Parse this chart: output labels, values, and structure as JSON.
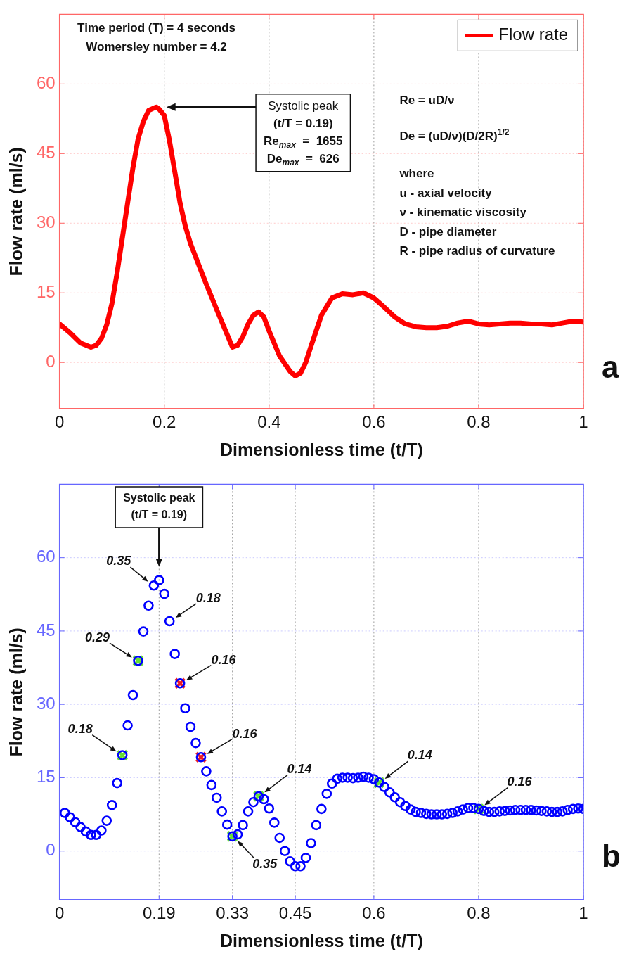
{
  "chart_data": [
    {
      "type": "line",
      "xlabel": "Dimensionless time (t/T)",
      "ylabel": "Flow rate (ml/s)",
      "series": [
        {
          "name": "Flow rate",
          "color": "#ff0000",
          "x": [
            0,
            0.02,
            0.04,
            0.06,
            0.07,
            0.08,
            0.09,
            0.1,
            0.11,
            0.12,
            0.13,
            0.14,
            0.15,
            0.16,
            0.17,
            0.18,
            0.185,
            0.19,
            0.2,
            0.21,
            0.22,
            0.23,
            0.24,
            0.25,
            0.26,
            0.28,
            0.3,
            0.32,
            0.33,
            0.34,
            0.35,
            0.36,
            0.37,
            0.38,
            0.39,
            0.4,
            0.42,
            0.44,
            0.45,
            0.46,
            0.47,
            0.48,
            0.5,
            0.52,
            0.54,
            0.56,
            0.58,
            0.6,
            0.62,
            0.64,
            0.66,
            0.68,
            0.7,
            0.72,
            0.74,
            0.76,
            0.78,
            0.8,
            0.82,
            0.84,
            0.86,
            0.88,
            0.9,
            0.92,
            0.94,
            0.96,
            0.98,
            1
          ],
          "values": [
            8.3,
            6.4,
            4.2,
            3.3,
            3.7,
            5.2,
            8.1,
            12.7,
            19.4,
            26.9,
            34.4,
            41.9,
            48.2,
            51.9,
            54.3,
            54.8,
            55.0,
            54.6,
            53.2,
            47.7,
            41.1,
            34.4,
            29.4,
            25.6,
            22.7,
            16.9,
            11.4,
            6.0,
            3.3,
            3.7,
            5.6,
            8.3,
            10.2,
            10.9,
            9.8,
            6.8,
            1.4,
            -1.9,
            -2.9,
            -2.3,
            0,
            3.5,
            10.2,
            13.9,
            14.8,
            14.6,
            15.0,
            13.9,
            11.9,
            9.8,
            8.3,
            7.7,
            7.5,
            7.5,
            7.8,
            8.5,
            8.9,
            8.3,
            8.1,
            8.3,
            8.5,
            8.5,
            8.3,
            8.3,
            8.1,
            8.5,
            8.9,
            8.7
          ]
        }
      ],
      "xlim": [
        0,
        1
      ],
      "ylim": [
        -10,
        75
      ],
      "xticks": [
        0,
        0.2,
        0.4,
        0.6,
        0.8,
        1
      ],
      "yticks": [
        0,
        15,
        30,
        45,
        60
      ],
      "grid": true,
      "legend": "top right",
      "marker": "none",
      "line_style": "solid",
      "annotations": [
        "Time period (T) = 4 seconds\nWomersley number = 4.2",
        "Systolic peak\n(t/T = 0.19)\nRe$_{max}$  =  1655\nDe$_{max}$  =  626",
        "Re = uD/ν",
        "De = (uD/ν)(D/2R)$^{1/2}$",
        "where\nu - axial velocity\nν - kinematic viscosity\nD - pipe diameter\nR - pipe radius of curvature",
        "a"
      ]
    },
    {
      "type": "scatter",
      "xlabel": "Dimensionless time (t/T)",
      "ylabel": "Flow rate (ml/s)",
      "x": [
        0.01,
        0.02,
        0.03,
        0.04,
        0.05,
        0.06,
        0.07,
        0.08,
        0.09,
        0.1,
        0.11,
        0.12,
        0.13,
        0.14,
        0.15,
        0.16,
        0.17,
        0.18,
        0.19,
        0.2,
        0.21,
        0.22,
        0.23,
        0.24,
        0.25,
        0.26,
        0.27,
        0.28,
        0.29,
        0.3,
        0.31,
        0.32,
        0.33,
        0.34,
        0.35,
        0.36,
        0.37,
        0.38,
        0.39,
        0.4,
        0.41,
        0.42,
        0.43,
        0.44,
        0.45,
        0.46,
        0.47,
        0.48,
        0.49,
        0.5,
        0.51,
        0.52,
        0.53,
        0.54,
        0.55,
        0.56,
        0.57,
        0.58,
        0.59,
        0.6,
        0.61,
        0.62,
        0.63,
        0.64,
        0.65,
        0.66,
        0.67,
        0.68,
        0.69,
        0.7,
        0.71,
        0.72,
        0.73,
        0.74,
        0.75,
        0.76,
        0.77,
        0.78,
        0.79,
        0.8,
        0.81,
        0.82,
        0.83,
        0.84,
        0.85,
        0.86,
        0.87,
        0.88,
        0.89,
        0.9,
        0.91,
        0.92,
        0.93,
        0.94,
        0.95,
        0.96,
        0.97,
        0.98,
        0.99,
        1
      ],
      "series": [
        {
          "color": "#0000ff",
          "values": [
            7.8,
            6.9,
            5.9,
            4.9,
            4.0,
            3.3,
            3.3,
            4.2,
            6.2,
            9.4,
            13.9,
            19.6,
            25.7,
            31.9,
            38.9,
            44.9,
            50.2,
            54.3,
            55.4,
            52.6,
            47.0,
            40.3,
            34.3,
            29.2,
            25.4,
            22.1,
            19.2,
            16.3,
            13.5,
            10.9,
            8.1,
            5.4,
            3.0,
            3.4,
            5.3,
            8.1,
            10.0,
            11.2,
            10.6,
            8.7,
            5.8,
            2.7,
            0.0,
            -2.1,
            -3.1,
            -3.1,
            -1.4,
            1.6,
            5.3,
            8.6,
            11.7,
            13.8,
            14.8,
            15.0,
            15.0,
            14.9,
            15.0,
            15.2,
            15.0,
            14.7,
            14.0,
            13.1,
            12.0,
            11.0,
            10.0,
            9.2,
            8.5,
            8.0,
            7.8,
            7.6,
            7.5,
            7.5,
            7.5,
            7.6,
            7.8,
            8.1,
            8.5,
            8.8,
            8.8,
            8.6,
            8.2,
            8.0,
            8.0,
            8.1,
            8.2,
            8.3,
            8.4,
            8.4,
            8.4,
            8.4,
            8.3,
            8.2,
            8.1,
            8.0,
            8.0,
            8.1,
            8.4,
            8.6,
            8.7,
            8.6
          ]
        },
        {
          "color": "#66e033",
          "marker": "cross",
          "x": [
            0.12,
            0.15,
            0.33,
            0.38,
            0.61,
            0.8
          ],
          "values": [
            19.6,
            38.9,
            3.0,
            11.2,
            14.0,
            8.6
          ]
        },
        {
          "color": "#ee1c24",
          "marker": "cross",
          "x": [
            0.23,
            0.27
          ],
          "values": [
            34.3,
            19.2
          ]
        }
      ],
      "xlim": [
        0,
        1
      ],
      "ylim": [
        -10,
        75
      ],
      "xticks": [
        0,
        0.19,
        0.33,
        0.45,
        0.6,
        0.8,
        1
      ],
      "yticks": [
        0,
        15,
        30,
        45,
        60
      ],
      "grid": true,
      "marker": "circle",
      "annotations": [
        "Systolic peak\n(t/T = 0.19)",
        {
          "text": "0.35",
          "x": 0.18,
          "y": 54.3
        },
        {
          "text": "0.18",
          "x": 0.21,
          "y": 47.0
        },
        {
          "text": "0.29",
          "x": 0.15,
          "y": 38.9
        },
        {
          "text": "0.16",
          "x": 0.23,
          "y": 34.3
        },
        {
          "text": "0.18",
          "x": 0.12,
          "y": 19.6
        },
        {
          "text": "0.16",
          "x": 0.27,
          "y": 19.2
        },
        {
          "text": "0.14",
          "x": 0.38,
          "y": 11.2
        },
        {
          "text": "0.35",
          "x": 0.33,
          "y": 3.0
        },
        {
          "text": "0.14",
          "x": 0.61,
          "y": 14.0
        },
        {
          "text": "0.16",
          "x": 0.8,
          "y": 8.6
        },
        "b"
      ]
    }
  ]
}
